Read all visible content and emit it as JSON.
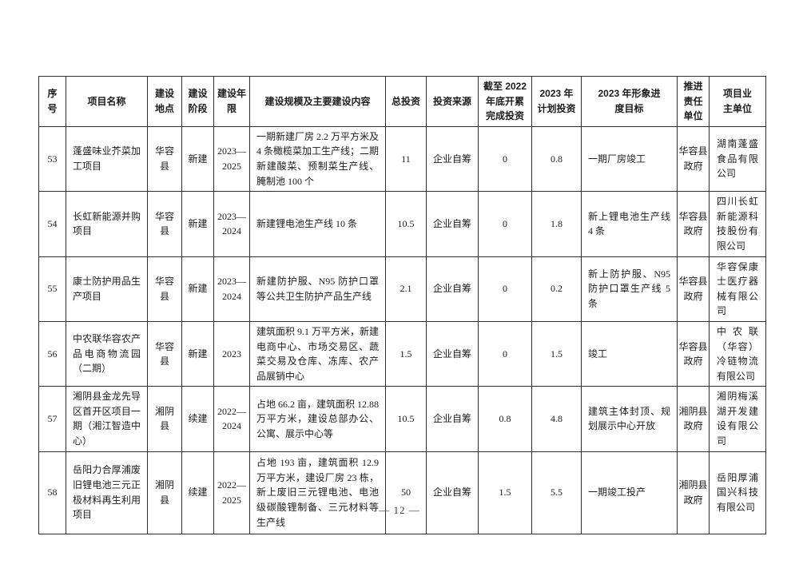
{
  "page": {
    "footer": "— 12 —"
  },
  "table": {
    "headers": [
      "序号",
      "项目名称",
      "建设地点",
      "建设阶段",
      "建设年限",
      "建设规模及主要建设内容",
      "总投资",
      "投资来源",
      "截至 2022 年底开累完成投资",
      "2023 年计划投资",
      "2023 年形象进度目标",
      "推进责任单位",
      "项目业主单位"
    ],
    "rows": [
      {
        "no": "53",
        "name": "蓬盛味业芥菜加工项目",
        "location": "华容县",
        "stage": "新建",
        "years": "2023—2025",
        "scale": "一期新建厂房 2.2 万平方米及 4 条橄榄菜加工生产线；二期新建酸菜、预制菜生产线、腌制池 100 个",
        "investment": "11",
        "source": "企业自筹",
        "completed": "0",
        "planned": "0.8",
        "goal": "一期厂房竣工",
        "responsible": "华容县政府",
        "owner": "湖南蓬盛食品有限公司"
      },
      {
        "no": "54",
        "name": "长虹新能源并购项目",
        "location": "华容县",
        "stage": "新建",
        "years": "2023—2024",
        "scale": "新建锂电池生产线 10 条",
        "investment": "10.5",
        "source": "企业自筹",
        "completed": "0",
        "planned": "1.8",
        "goal": "新上锂电池生产线 4 条",
        "responsible": "华容县政府",
        "owner": "四川长虹新能源科技股份有限公司"
      },
      {
        "no": "55",
        "name": "康士防护用品生产项目",
        "location": "华容县",
        "stage": "新建",
        "years": "2023—2024",
        "scale": "新建防护服、N95 防护口罩等公共卫生防护产品生产线",
        "investment": "2.1",
        "source": "企业自筹",
        "completed": "0",
        "planned": "0.2",
        "goal": "新上防护服、N95 防护口罩生产线 5 条",
        "responsible": "华容县政府",
        "owner": "华容保康士医疗器械有限公司"
      },
      {
        "no": "56",
        "name": "中农联华容农产品电商物流园（二期）",
        "location": "华容县",
        "stage": "新建",
        "years": "2023",
        "scale": "建筑面积 9.1 万平方米，新建电商中心、市场交易区、蔬菜交易及仓库、冻库、农产品展销中心",
        "investment": "1.5",
        "source": "企业自筹",
        "completed": "0",
        "planned": "1.5",
        "goal": "竣工",
        "responsible": "华容县政府",
        "owner": "中农联（华容）冷链物流有限公司"
      },
      {
        "no": "57",
        "name": "湘阴县金龙先导区首开区项目一期（湘江智造中心）",
        "location": "湘阴县",
        "stage": "续建",
        "years": "2022—2024",
        "scale": "占地 66.2 亩，建筑面积 12.88 万平方米，建设总部办公、公寓、展示中心等",
        "investment": "10.5",
        "source": "企业自筹",
        "completed": "0.8",
        "planned": "4.8",
        "goal": "建筑主体封顶、规划展示中心开放",
        "responsible": "湘阴县政府",
        "owner": "湘阴梅溪湖开发建设有限公司"
      },
      {
        "no": "58",
        "name": "岳阳力合厚浦废旧锂电池三元正极材料再生利用项目",
        "location": "湘阴县",
        "stage": "续建",
        "years": "2022—2025",
        "scale": "占地 193 亩，建筑面积 12.9 万平方米，建设厂房 23 栋，新上废旧三元锂电池、电池级碳酸锂制备、三元材料等生产线",
        "investment": "50",
        "source": "企业自筹",
        "completed": "1.5",
        "planned": "5.5",
        "goal": "一期竣工投产",
        "responsible": "湘阴县政府",
        "owner": "岳阳厚浦国兴科技有限公司"
      }
    ]
  }
}
